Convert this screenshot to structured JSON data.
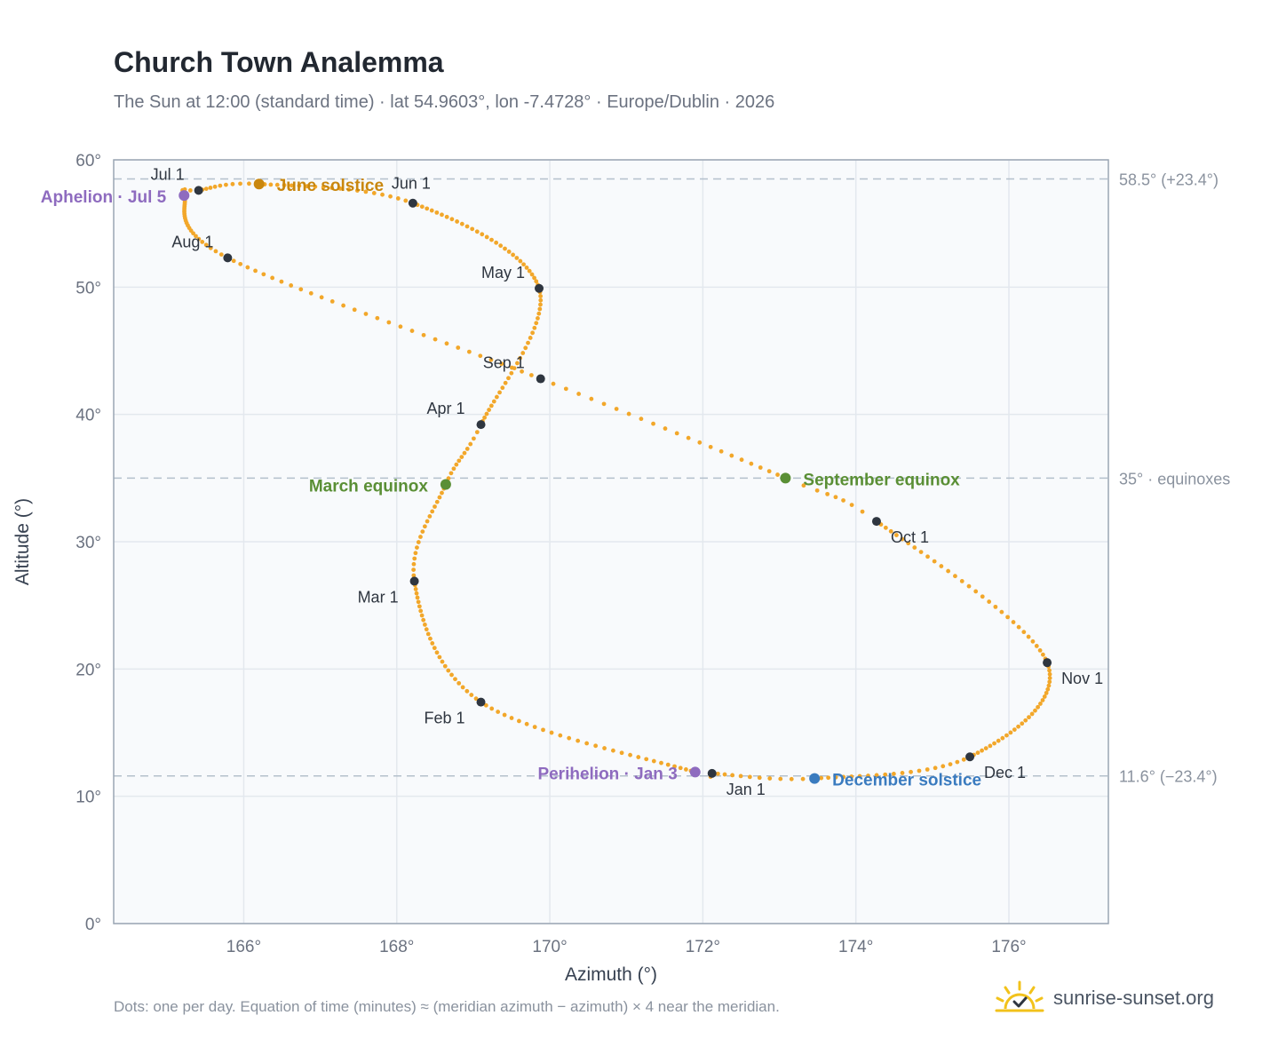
{
  "title": "Church Town Analemma",
  "subtitle": "The Sun at 12:00 (standard time) · lat 54.9603°, lon -7.4728° · Europe/Dublin · 2026",
  "footnote": "Dots: one per day. Equation of time (minutes) ≈ (meridian azimuth − azimuth) × 4 near the meridian.",
  "brand": {
    "text": "sunrise-sunset.org",
    "icon": "sun-check-logo-icon"
  },
  "colors": {
    "curve": "#f2a72a",
    "month_marker": "#2f3640",
    "solstice_june": "#c9870e",
    "solstice_december": "#3a7bbf",
    "equinox": "#5a8f35",
    "apsis": "#8e6bbf",
    "reference_line": "#b4c0cc",
    "plot_bg": "#f8fafc",
    "grid": "#e3e8ee",
    "frame": "#9aa6b4"
  },
  "chart_data": {
    "type": "scatter",
    "xlabel": "Azimuth (°)",
    "ylabel": "Altitude (°)",
    "xlim": [
      164.3,
      177.3
    ],
    "ylim": [
      0,
      60
    ],
    "x_ticks": [
      166,
      168,
      170,
      172,
      174,
      176
    ],
    "x_tick_labels": [
      "166°",
      "168°",
      "170°",
      "172°",
      "174°",
      "176°"
    ],
    "y_ticks": [
      0,
      10,
      20,
      30,
      40,
      50,
      60
    ],
    "y_tick_labels": [
      "0°",
      "10°",
      "20°",
      "30°",
      "40°",
      "50°",
      "60°"
    ],
    "grid": true,
    "reference_lines": [
      {
        "y": 58.5,
        "label": "58.5° (+23.4°)"
      },
      {
        "y": 35.0,
        "label": "35° · equinoxes"
      },
      {
        "y": 11.6,
        "label": "11.6° (−23.4°)"
      }
    ],
    "month_markers": [
      {
        "label": "Jan 1",
        "x": 172.12,
        "y": 11.8,
        "day": 0
      },
      {
        "label": "Feb 1",
        "x": 169.1,
        "y": 17.4,
        "day": 31
      },
      {
        "label": "Mar 1",
        "x": 168.23,
        "y": 26.9,
        "day": 59
      },
      {
        "label": "Apr 1",
        "x": 169.1,
        "y": 39.2,
        "day": 90
      },
      {
        "label": "May 1",
        "x": 169.86,
        "y": 49.9,
        "day": 120
      },
      {
        "label": "Jun 1",
        "x": 168.21,
        "y": 56.6,
        "day": 151
      },
      {
        "label": "Jul 1",
        "x": 165.41,
        "y": 57.6,
        "day": 181
      },
      {
        "label": "Aug 1",
        "x": 165.79,
        "y": 52.3,
        "day": 212
      },
      {
        "label": "Sep 1",
        "x": 169.88,
        "y": 42.8,
        "day": 243
      },
      {
        "label": "Oct 1",
        "x": 174.27,
        "y": 31.6,
        "day": 273
      },
      {
        "label": "Nov 1",
        "x": 176.5,
        "y": 20.5,
        "day": 304
      },
      {
        "label": "Dec 1",
        "x": 175.49,
        "y": 13.1,
        "day": 334
      }
    ],
    "events": [
      {
        "label": "March equinox",
        "x": 168.64,
        "y": 34.5,
        "day": 78,
        "kind": "equinox"
      },
      {
        "label": "June solstice",
        "x": 166.2,
        "y": 58.1,
        "day": 171,
        "kind": "solstice_june"
      },
      {
        "label": "September equinox",
        "x": 173.08,
        "y": 35.0,
        "day": 265,
        "kind": "equinox"
      },
      {
        "label": "December solstice",
        "x": 173.46,
        "y": 11.4,
        "day": 354,
        "kind": "solstice_december"
      },
      {
        "label": "Perihelion · Jan 3",
        "x": 171.9,
        "y": 11.9,
        "day": 2,
        "kind": "apsis"
      },
      {
        "label": "Aphelion · Jul 5",
        "x": 165.22,
        "y": 57.2,
        "day": 185,
        "kind": "apsis"
      }
    ]
  }
}
